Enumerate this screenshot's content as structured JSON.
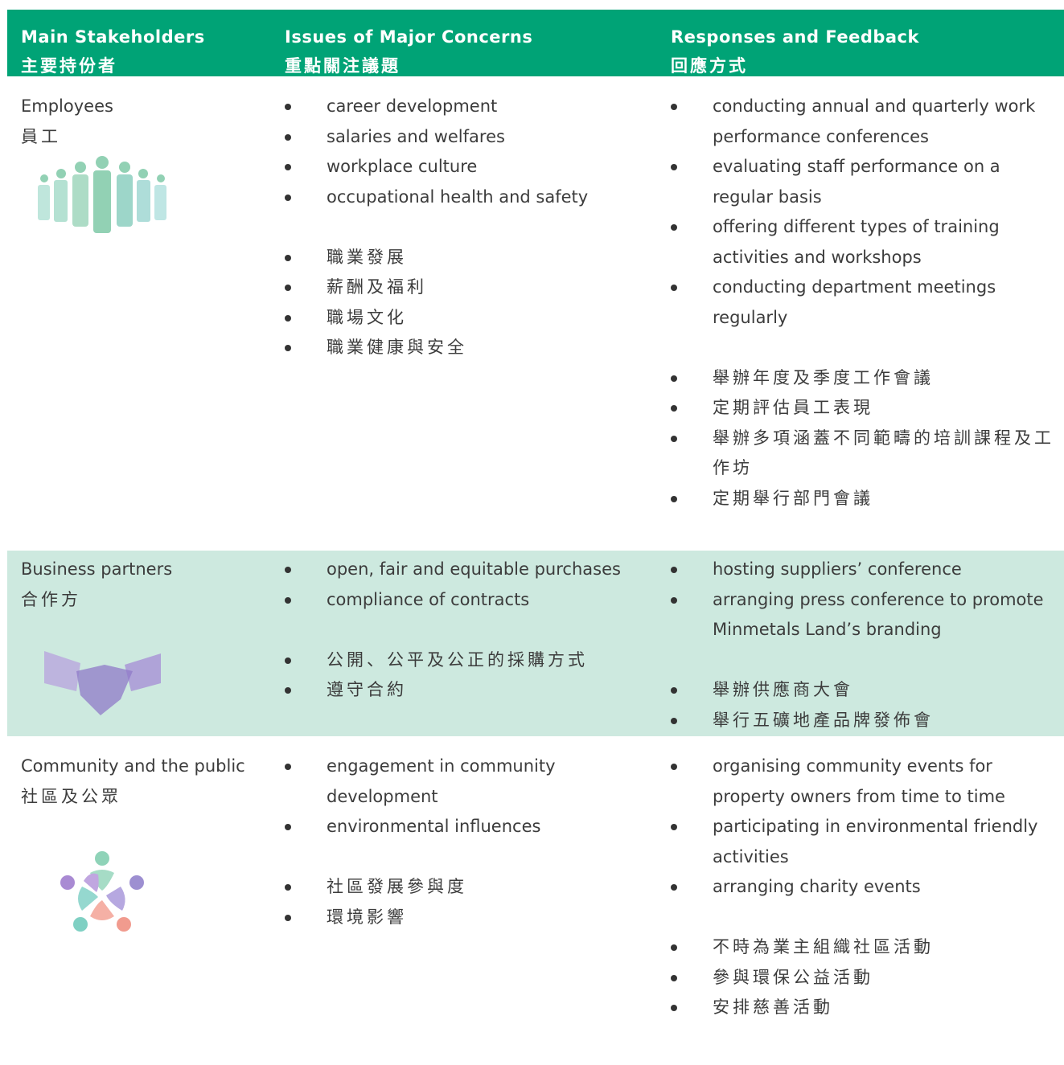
{
  "table": {
    "header": [
      {
        "en": "Main Stakeholders",
        "zh": "主要持份者"
      },
      {
        "en": "Issues of Major Concerns",
        "zh": "重點關注議題"
      },
      {
        "en": "Responses and Feedback",
        "zh": "回應方式"
      }
    ],
    "rows": [
      {
        "stakeholder": {
          "en": "Employees",
          "zh": "員工"
        },
        "issues_en": [
          "career development",
          "salaries and welfares",
          "workplace culture",
          "occupational health and safety"
        ],
        "issues_zh": [
          "職業發展",
          "薪酬及福利",
          "職場文化",
          "職業健康與安全"
        ],
        "responses_en": [
          "conducting annual and quarterly work performance conferences",
          "evaluating staff performance on a regular basis",
          "offering different types of training activities and workshops",
          "conducting department meetings regularly"
        ],
        "responses_zh": [
          "舉辦年度及季度工作會議",
          "定期評估員工表現",
          "舉辦多項涵蓋不同範疇的培訓課程及工作坊",
          "定期舉行部門會議"
        ]
      },
      {
        "stakeholder": {
          "en": "Business partners",
          "zh": "合作方"
        },
        "issues_en": [
          "open, fair and equitable purchases",
          "compliance of contracts"
        ],
        "issues_zh": [
          "公開、公平及公正的採購方式",
          "遵守合約"
        ],
        "responses_en": [
          "hosting suppliers’ conference",
          "arranging press conference to promote Minmetals Land’s branding"
        ],
        "responses_zh": [
          "舉辦供應商大會",
          "舉行五礦地產品牌發佈會"
        ]
      },
      {
        "stakeholder": {
          "en": "Community and the public",
          "zh": "社區及公眾"
        },
        "issues_en": [
          "engagement in community development",
          "environmental influences"
        ],
        "issues_zh": [
          "社區發展參與度",
          "環境影響"
        ],
        "responses_en": [
          "organising community events for property owners from time to time",
          "participating in environmental friendly activities",
          "arranging charity events"
        ],
        "responses_zh": [
          "不時為業主組織社區活動",
          "參與環保公益活動",
          "安排慈善活動"
        ]
      }
    ]
  }
}
